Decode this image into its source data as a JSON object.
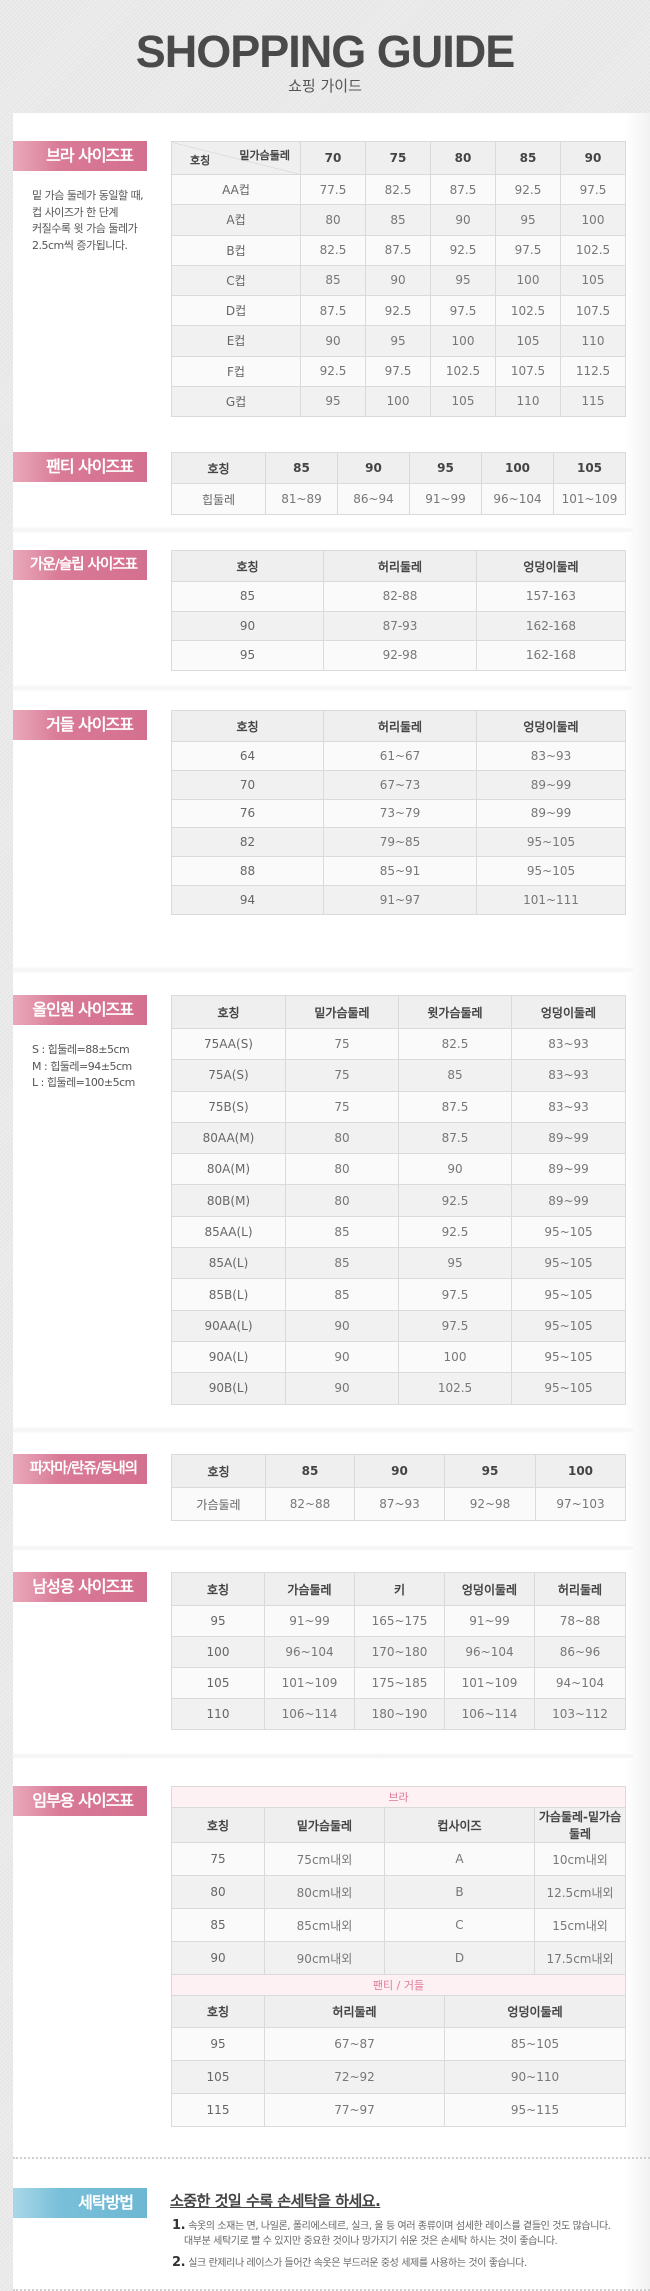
{
  "header": {
    "title": "SHOPPING GUIDE",
    "subtitle": "쇼핑 가이드"
  },
  "colors": {
    "label_pink": "#d4708f",
    "label_blue": "#6db7d3",
    "subheader_pink": "#e0789a"
  },
  "sections": [
    {
      "label": "브라 사이즈표",
      "notes": [
        "밑 가슴 둘레가 동일할 때,",
        "컵 사이즈가 한 단계",
        "커질수록 윗 가슴 둘레가",
        "2.5cm씩 증가됩니다."
      ],
      "diag_header": {
        "top": "밑가슴둘레",
        "bottom": "호칭"
      },
      "columns": [
        "70",
        "75",
        "80",
        "85",
        "90"
      ],
      "rows": [
        [
          "AA컵",
          "77.5",
          "82.5",
          "87.5",
          "92.5",
          "97.5"
        ],
        [
          "A컵",
          "80",
          "85",
          "90",
          "95",
          "100"
        ],
        [
          "B컵",
          "82.5",
          "87.5",
          "92.5",
          "97.5",
          "102.5"
        ],
        [
          "C컵",
          "85",
          "90",
          "95",
          "100",
          "105"
        ],
        [
          "D컵",
          "87.5",
          "92.5",
          "97.5",
          "102.5",
          "107.5"
        ],
        [
          "E컵",
          "90",
          "95",
          "100",
          "105",
          "110"
        ],
        [
          "F컵",
          "92.5",
          "97.5",
          "102.5",
          "107.5",
          "112.5"
        ],
        [
          "G컵",
          "95",
          "100",
          "105",
          "110",
          "115"
        ]
      ]
    },
    {
      "label": "팬티 사이즈표",
      "columns": [
        "호칭",
        "85",
        "90",
        "95",
        "100",
        "105"
      ],
      "rows": [
        [
          "힙둘레",
          "81~89",
          "86~94",
          "91~99",
          "96~104",
          "101~109"
        ]
      ]
    },
    {
      "label": "가운/슬립 사이즈표",
      "columns": [
        "호칭",
        "허리둘레",
        "엉덩이둘레"
      ],
      "rows": [
        [
          "85",
          "82-88",
          "157-163"
        ],
        [
          "90",
          "87-93",
          "162-168"
        ],
        [
          "95",
          "92-98",
          "162-168"
        ]
      ]
    },
    {
      "label": "거들 사이즈표",
      "columns": [
        "호칭",
        "허리둘레",
        "엉덩이둘레"
      ],
      "rows": [
        [
          "64",
          "61~67",
          "83~93"
        ],
        [
          "70",
          "67~73",
          "89~99"
        ],
        [
          "76",
          "73~79",
          "89~99"
        ],
        [
          "82",
          "79~85",
          "95~105"
        ],
        [
          "88",
          "85~91",
          "95~105"
        ],
        [
          "94",
          "91~97",
          "101~111"
        ]
      ]
    },
    {
      "label": "올인원 사이즈표",
      "notes": [
        "S : 힙둘레=88±5cm",
        "M : 힙둘레=94±5cm",
        "L : 힙둘레=100±5cm"
      ],
      "columns": [
        "호칭",
        "밑가슴둘레",
        "윗가슴둘레",
        "엉덩이둘레"
      ],
      "rows": [
        [
          "75AA(S)",
          "75",
          "82.5",
          "83~93"
        ],
        [
          "75A(S)",
          "75",
          "85",
          "83~93"
        ],
        [
          "75B(S)",
          "75",
          "87.5",
          "83~93"
        ],
        [
          "80AA(M)",
          "80",
          "87.5",
          "89~99"
        ],
        [
          "80A(M)",
          "80",
          "90",
          "89~99"
        ],
        [
          "80B(M)",
          "80",
          "92.5",
          "89~99"
        ],
        [
          "85AA(L)",
          "85",
          "92.5",
          "95~105"
        ],
        [
          "85A(L)",
          "85",
          "95",
          "95~105"
        ],
        [
          "85B(L)",
          "85",
          "97.5",
          "95~105"
        ],
        [
          "90AA(L)",
          "90",
          "97.5",
          "95~105"
        ],
        [
          "90A(L)",
          "90",
          "100",
          "95~105"
        ],
        [
          "90B(L)",
          "90",
          "102.5",
          "95~105"
        ]
      ]
    },
    {
      "label": "파자마/란쥬/동내의",
      "columns": [
        "호칭",
        "85",
        "90",
        "95",
        "100"
      ],
      "rows": [
        [
          "가슴둘레",
          "82~88",
          "87~93",
          "92~98",
          "97~103"
        ]
      ]
    },
    {
      "label": "남성용 사이즈표",
      "columns": [
        "호칭",
        "가슴둘레",
        "키",
        "엉덩이둘레",
        "허리둘레"
      ],
      "rows": [
        [
          "95",
          "91~99",
          "165~175",
          "91~99",
          "78~88"
        ],
        [
          "100",
          "96~104",
          "170~180",
          "96~104",
          "86~96"
        ],
        [
          "105",
          "101~109",
          "175~185",
          "101~109",
          "94~104"
        ],
        [
          "110",
          "106~114",
          "180~190",
          "106~114",
          "103~112"
        ]
      ]
    },
    {
      "label": "임부용 사이즈표",
      "parts": [
        {
          "subheader": "브라",
          "columns": [
            "호칭",
            "밑가슴둘레",
            "컵사이즈",
            "가슴둘레-밑가슴둘레"
          ],
          "rows": [
            [
              "75",
              "75cm내외",
              "A",
              "10cm내외"
            ],
            [
              "80",
              "80cm내외",
              "B",
              "12.5cm내외"
            ],
            [
              "85",
              "85cm내외",
              "C",
              "15cm내외"
            ],
            [
              "90",
              "90cm내외",
              "D",
              "17.5cm내외"
            ]
          ]
        },
        {
          "subheader": "팬티 / 거들",
          "columns": [
            "호칭",
            "허리둘레",
            "엉덩이둘레"
          ],
          "rows": [
            [
              "95",
              "67~87",
              "85~105"
            ],
            [
              "105",
              "72~92",
              "90~110"
            ],
            [
              "115",
              "77~97",
              "95~115"
            ]
          ]
        }
      ]
    }
  ],
  "washing": {
    "label": "세탁방법",
    "title": "소중한 것일 수록 손세탁을 하세요.",
    "items": [
      {
        "num": "1.",
        "lines": [
          "속옷의 소재는 면, 나일론, 폴리에스테르, 실크, 울 등 여러 종류이며 섬세한 레이스를 곁들인 것도 많습니다.",
          "대부분 세탁기로 빨 수 있지만 중요한 것이나 망가지기 쉬운 것은 손세탁 하시는 것이 좋습니다."
        ]
      },
      {
        "num": "2.",
        "lines": [
          "실크 란제리나 레이스가 들어간 속옷은 부드러운 중성 세제를 사용하는 것이 좋습니다."
        ]
      }
    ]
  }
}
